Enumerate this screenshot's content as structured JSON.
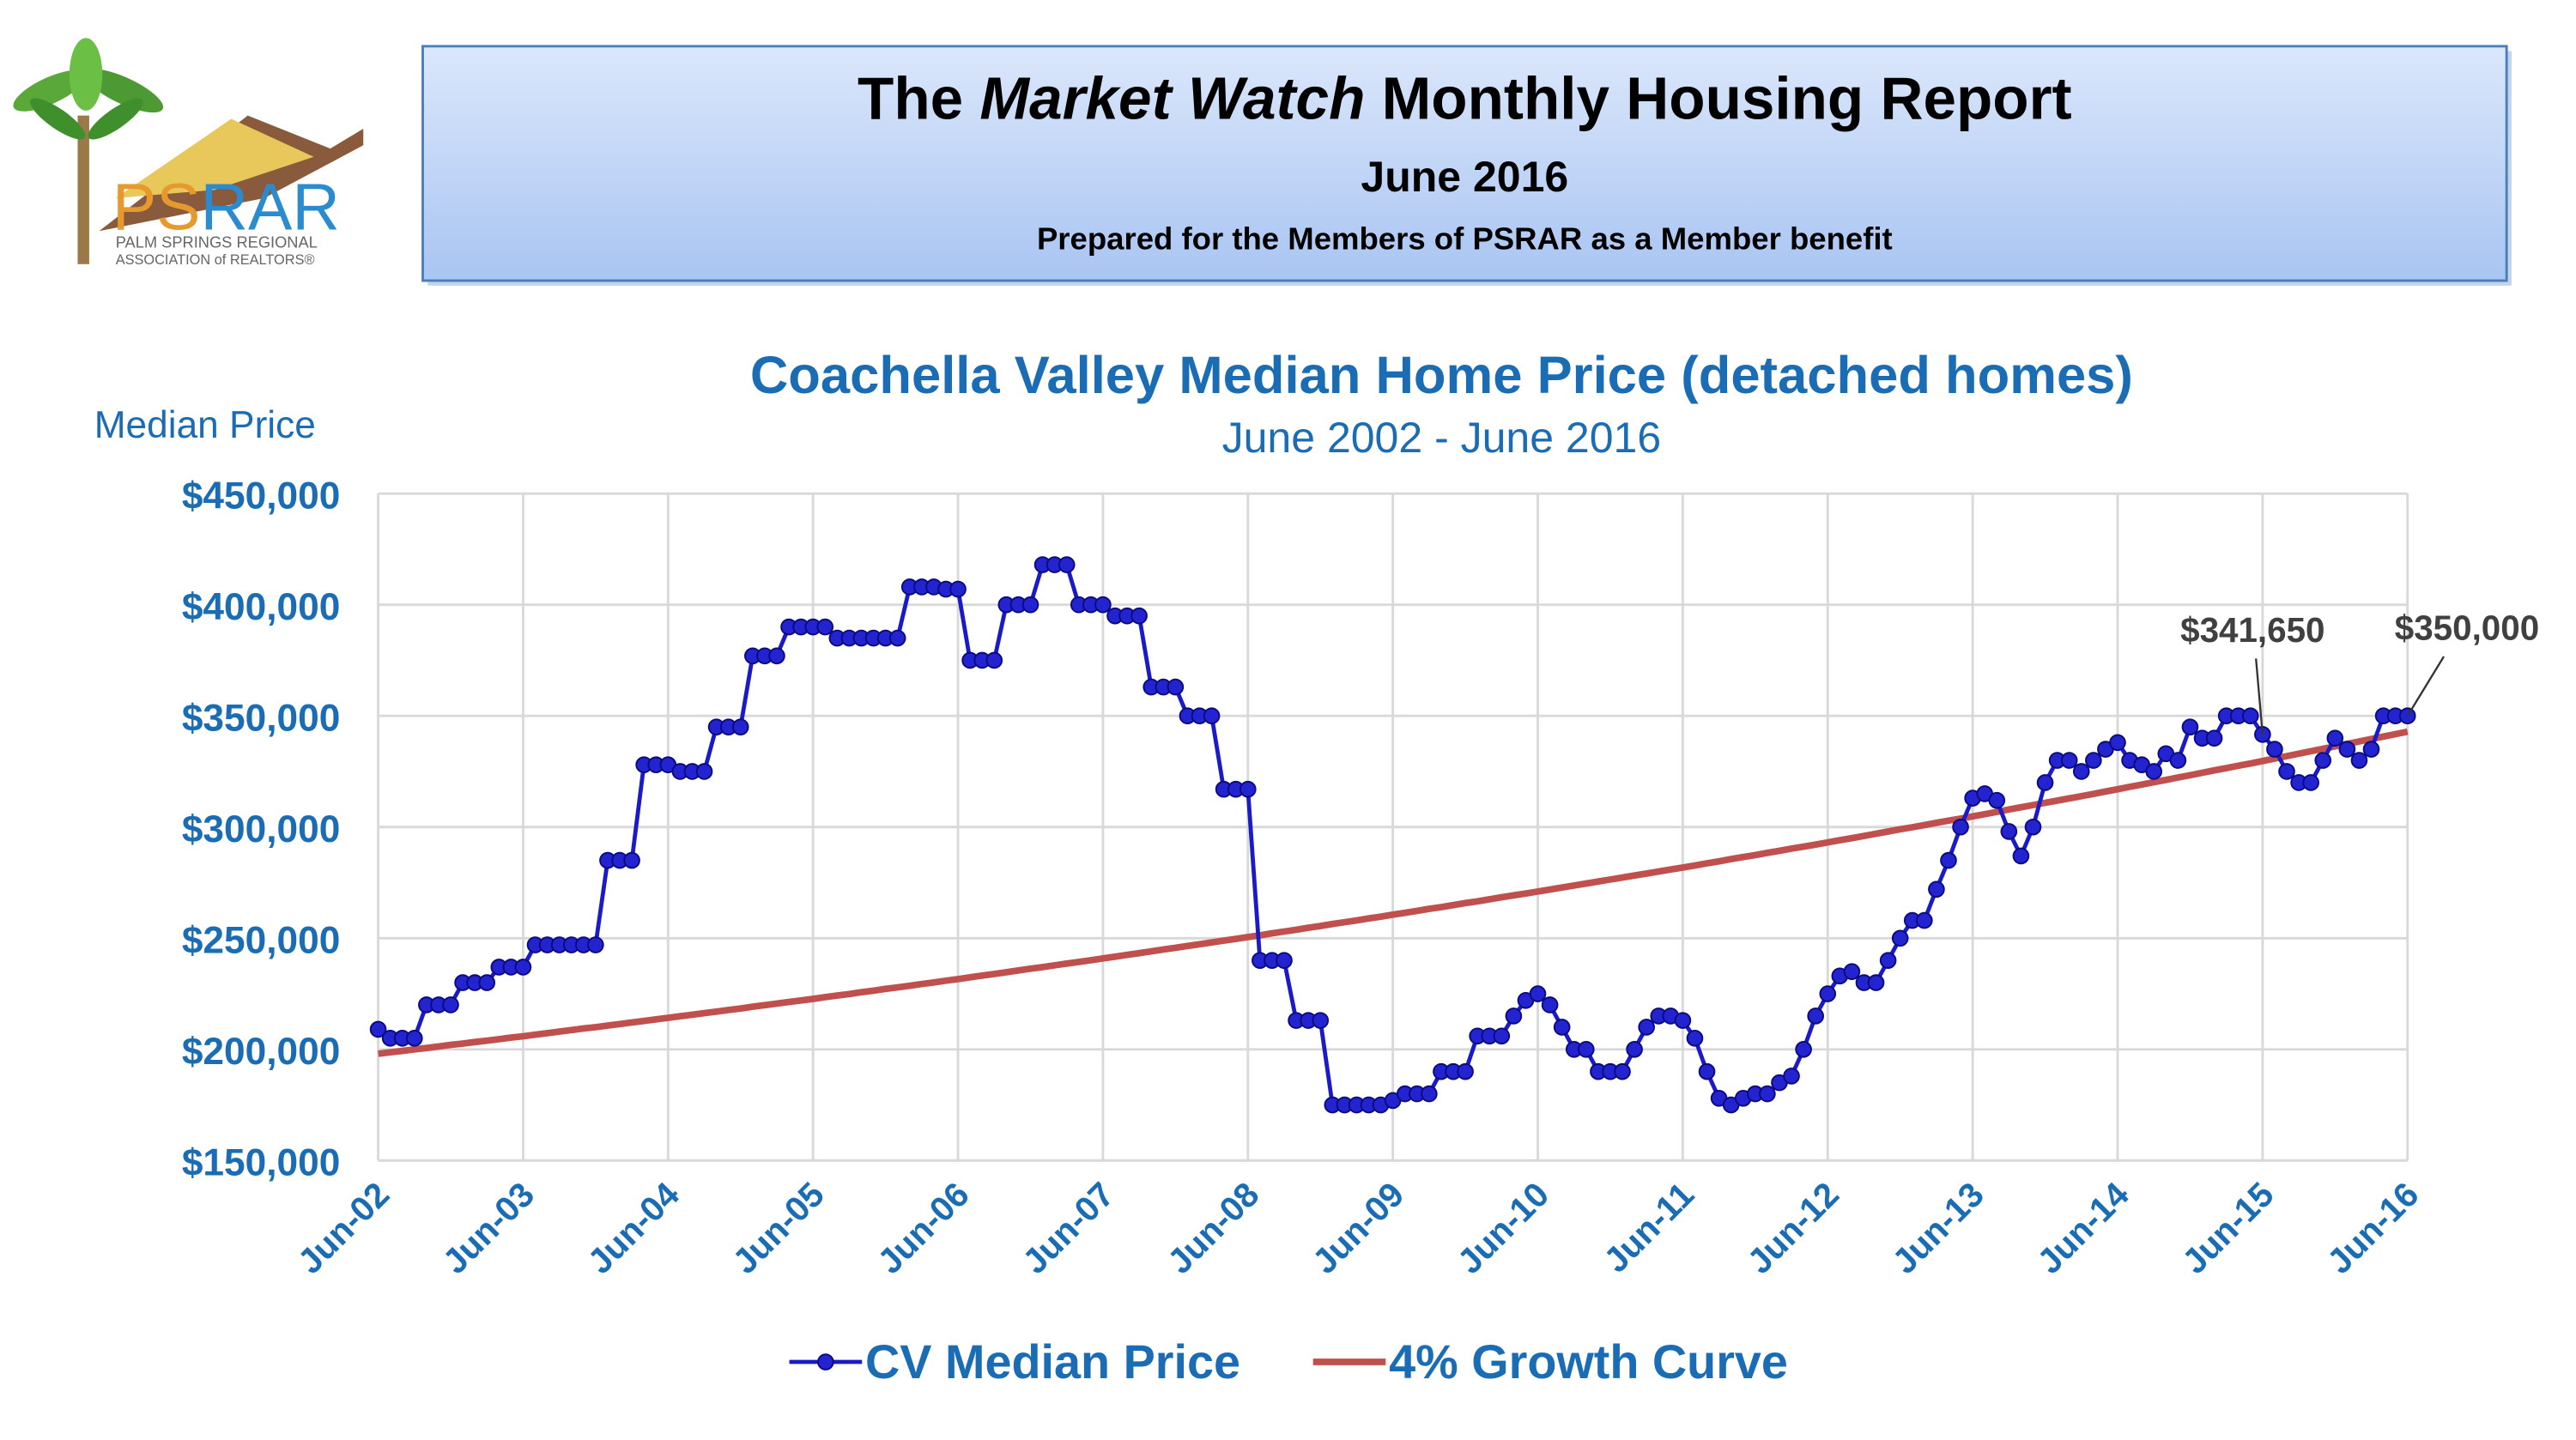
{
  "logo": {
    "text_1": "PS",
    "text_2": "RAR",
    "line_1": "PALM SPRINGS REGIONAL",
    "line_2": "ASSOCIATION of REALTORS®"
  },
  "header": {
    "title_parts": [
      "The ",
      "Market Watch",
      " Monthly Housing Report"
    ],
    "date": "June 2016",
    "subtitle": "Prepared for the Members of PSRAR as a Member benefit"
  },
  "chart_data": {
    "type": "line",
    "title": "Coachella Valley Median Home Price (detached homes)",
    "subtitle": "June 2002 - June 2016",
    "y_label": "Median Price",
    "ylim": [
      150000,
      450000
    ],
    "yticks": [
      {
        "value": 150000,
        "label": "$150,000"
      },
      {
        "value": 200000,
        "label": "$200,000"
      },
      {
        "value": 250000,
        "label": "$250,000"
      },
      {
        "value": 300000,
        "label": "$300,000"
      },
      {
        "value": 350000,
        "label": "$350,000"
      },
      {
        "value": 400000,
        "label": "$400,000"
      },
      {
        "value": 450000,
        "label": "$450,000"
      }
    ],
    "grid": true,
    "legend": "bottom",
    "categories": [
      "Jun-02",
      null,
      null,
      null,
      null,
      null,
      null,
      null,
      null,
      null,
      null,
      null,
      "Jun-03",
      null,
      null,
      null,
      null,
      null,
      null,
      null,
      null,
      null,
      null,
      null,
      "Jun-04",
      null,
      null,
      null,
      null,
      null,
      null,
      null,
      null,
      null,
      null,
      null,
      "Jun-05",
      null,
      null,
      null,
      null,
      null,
      null,
      null,
      null,
      null,
      null,
      null,
      "Jun-06",
      null,
      null,
      null,
      null,
      null,
      null,
      null,
      null,
      null,
      null,
      null,
      "Jun-07",
      null,
      null,
      null,
      null,
      null,
      null,
      null,
      null,
      null,
      null,
      null,
      "Jun-08",
      null,
      null,
      null,
      null,
      null,
      null,
      null,
      null,
      null,
      null,
      null,
      "Jun-09",
      null,
      null,
      null,
      null,
      null,
      null,
      null,
      null,
      null,
      null,
      null,
      "Jun-10",
      null,
      null,
      null,
      null,
      null,
      null,
      null,
      null,
      null,
      null,
      null,
      "Jun-11",
      null,
      null,
      null,
      null,
      null,
      null,
      null,
      null,
      null,
      null,
      null,
      "Jun-12",
      null,
      null,
      null,
      null,
      null,
      null,
      null,
      null,
      null,
      null,
      null,
      "Jun-13",
      null,
      null,
      null,
      null,
      null,
      null,
      null,
      null,
      null,
      null,
      null,
      "Jun-14",
      null,
      null,
      null,
      null,
      null,
      null,
      null,
      null,
      null,
      null,
      null,
      "Jun-15",
      null,
      null,
      null,
      null,
      null,
      null,
      null,
      null,
      null,
      null,
      null,
      "Jun-16"
    ],
    "series": [
      {
        "name": "CV Median Price",
        "color": "#1a1ac8",
        "markers": true,
        "values": [
          209000,
          205000,
          205000,
          205000,
          220000,
          220000,
          220000,
          230000,
          230000,
          230000,
          237000,
          237000,
          237000,
          247000,
          247000,
          247000,
          247000,
          247000,
          247000,
          285000,
          285000,
          285000,
          328000,
          328000,
          328000,
          325000,
          325000,
          325000,
          345000,
          345000,
          345000,
          377000,
          377000,
          377000,
          390000,
          390000,
          390000,
          390000,
          385000,
          385000,
          385000,
          385000,
          385000,
          385000,
          408000,
          408000,
          408000,
          407000,
          407000,
          375000,
          375000,
          375000,
          400000,
          400000,
          400000,
          418000,
          418000,
          418000,
          400000,
          400000,
          400000,
          395000,
          395000,
          395000,
          363000,
          363000,
          363000,
          350000,
          350000,
          350000,
          317000,
          317000,
          317000,
          240000,
          240000,
          240000,
          213000,
          213000,
          213000,
          175000,
          175000,
          175000,
          175000,
          175000,
          177000,
          180000,
          180000,
          180000,
          190000,
          190000,
          190000,
          206000,
          206000,
          206000,
          215000,
          222000,
          225000,
          220000,
          210000,
          200000,
          200000,
          190000,
          190000,
          190000,
          200000,
          210000,
          215000,
          215000,
          213000,
          205000,
          190000,
          178000,
          175000,
          178000,
          180000,
          180000,
          185000,
          188000,
          200000,
          215000,
          225000,
          233000,
          235000,
          230000,
          230000,
          240000,
          250000,
          258000,
          258000,
          272000,
          285000,
          300000,
          313000,
          315000,
          312000,
          298000,
          287000,
          300000,
          320000,
          330000,
          330000,
          325000,
          330000,
          335000,
          338000,
          330000,
          328000,
          325000,
          333000,
          330000,
          345000,
          340000,
          340000,
          350000,
          350000,
          350000,
          341650,
          335000,
          325000,
          320000,
          320000,
          330000,
          340000,
          335000,
          330000,
          335000,
          350000,
          350000,
          350000
        ],
        "value_labels": [
          null,
          null,
          null,
          null,
          null,
          null,
          null,
          null,
          null,
          null,
          null,
          null,
          null,
          null,
          null,
          null,
          null,
          null,
          null,
          null,
          null,
          null,
          null,
          null,
          null,
          null,
          null,
          null,
          null,
          null,
          null,
          null,
          null,
          null,
          null,
          null,
          null,
          null,
          null,
          null,
          null,
          null,
          null,
          null,
          null,
          null,
          null,
          null,
          null,
          null,
          null,
          null,
          null,
          null,
          null,
          null,
          null,
          null,
          null,
          null,
          null,
          null,
          null,
          null,
          null,
          null,
          null,
          null,
          null,
          null,
          null,
          null,
          null,
          null,
          null,
          null,
          null,
          null,
          null,
          null,
          null,
          null,
          null,
          null,
          null,
          null,
          null,
          null,
          null,
          null,
          null,
          null,
          null,
          null,
          null,
          null,
          null,
          null,
          null,
          null,
          null,
          null,
          null,
          null,
          null,
          null,
          null,
          null,
          null,
          null,
          null,
          null,
          null,
          null,
          null,
          null,
          null,
          null,
          null,
          null,
          null,
          null,
          null,
          null,
          null,
          null,
          null,
          null,
          null,
          null,
          null,
          null,
          null,
          null,
          null,
          null,
          null,
          null,
          null,
          null,
          null,
          null,
          null,
          null,
          null,
          null,
          null,
          null,
          null,
          null,
          null,
          null,
          null,
          null,
          null,
          null,
          "$341,650",
          null,
          null,
          null,
          null,
          null,
          null,
          null,
          null,
          null,
          null,
          null,
          "$350,000"
        ]
      },
      {
        "name": "4% Growth Curve",
        "color": "#c0504d",
        "markers": false,
        "values": [
          198000,
          198700,
          199300,
          200000,
          200600,
          201300,
          202000,
          202600,
          203300,
          203900,
          204600,
          205300,
          205900,
          206600,
          207300,
          208000,
          208700,
          209400,
          210000,
          210700,
          211400,
          212100,
          212800,
          213500,
          214200,
          214900,
          215600,
          216300,
          217000,
          217700,
          218400,
          219200,
          219900,
          220600,
          221300,
          222000,
          222700,
          223500,
          224200,
          224900,
          225700,
          226400,
          227200,
          227900,
          228600,
          229400,
          230100,
          230900,
          231600,
          232400,
          233200,
          233900,
          234700,
          235500,
          236300,
          237000,
          237800,
          238600,
          239300,
          240100,
          240900,
          241700,
          242500,
          243300,
          244100,
          244900,
          245700,
          246500,
          247300,
          248100,
          248900,
          249700,
          250500,
          251300,
          252200,
          253000,
          253800,
          254700,
          255500,
          256400,
          257200,
          258000,
          258900,
          259700,
          260600,
          261400,
          262300,
          263200,
          264000,
          264900,
          265800,
          266600,
          267500,
          268400,
          269300,
          270100,
          271000,
          271900,
          272800,
          273700,
          274600,
          275500,
          276400,
          277300,
          278200,
          279100,
          280000,
          280900,
          281800,
          282700,
          283700,
          284600,
          285600,
          286500,
          287400,
          288400,
          289300,
          290300,
          291200,
          292100,
          293100,
          294100,
          295000,
          296000,
          297000,
          298000,
          299000,
          299900,
          300900,
          301900,
          302900,
          303800,
          304800,
          305800,
          306800,
          307900,
          308900,
          309900,
          310900,
          311900,
          312900,
          313900,
          314900,
          316000,
          317000,
          318100,
          319100,
          320200,
          321200,
          322300,
          323300,
          324400,
          325500,
          326500,
          327600,
          328600,
          329700,
          330800,
          331900,
          333000,
          334100,
          335200,
          336300,
          337400,
          338500,
          339600,
          340700,
          341800,
          342900
        ]
      }
    ]
  }
}
